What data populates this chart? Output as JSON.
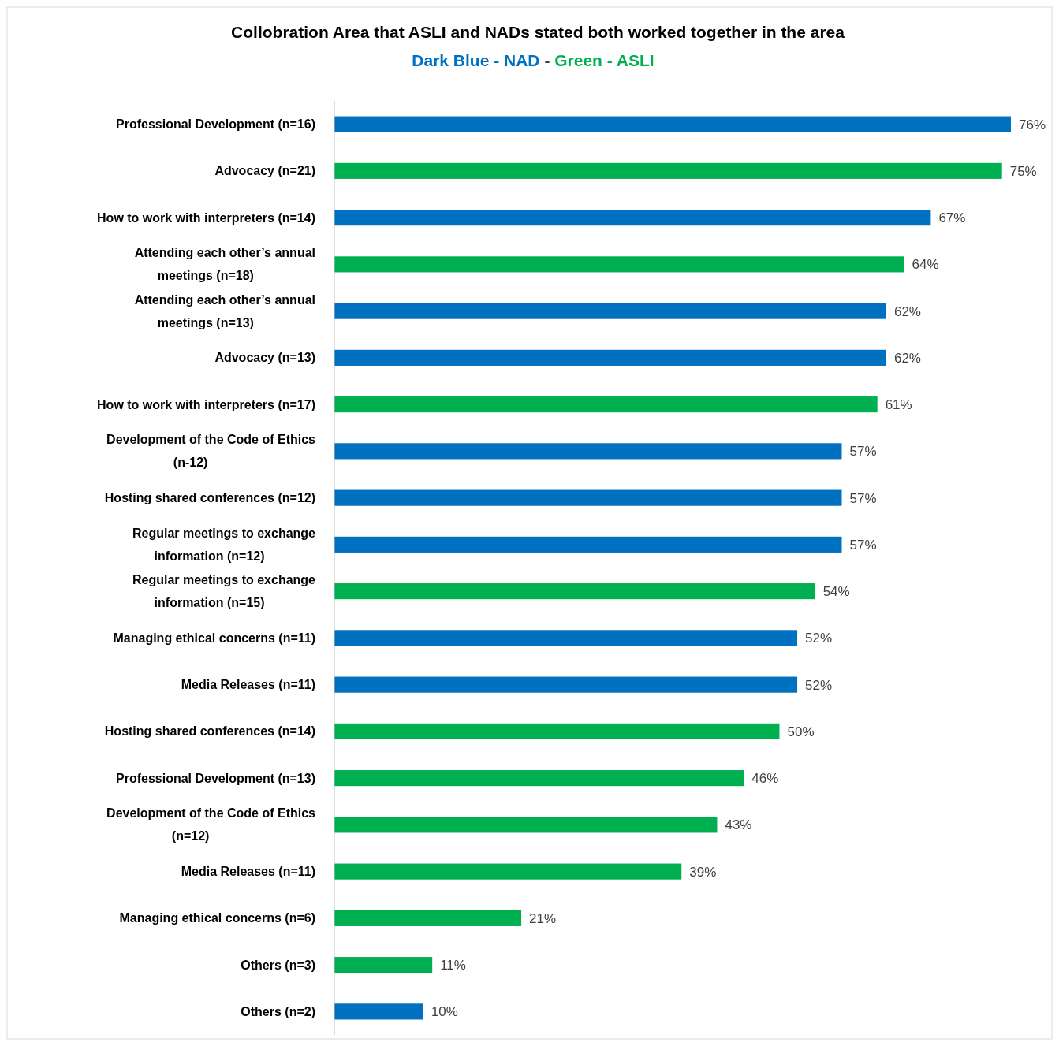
{
  "chart_data": {
    "type": "bar",
    "orientation": "horizontal",
    "title": "Collobration Area that ASLI and NADs stated both worked together in the area",
    "subtitle": "Dark Blue - NAD - Green - ASLI",
    "categories": [
      "Professional Development (n=16)",
      "Advocacy (n=21)",
      "How to work with interpreters (n=14)",
      "Attending each other’s annual meetings (n=18)",
      "Attending each other’s annual meetings (n=13)",
      "Advocacy (n=13)",
      "How to work with interpreters (n=17)",
      "Development of the Code of Ethics (n-12)",
      "Hosting shared conferences (n=12)",
      "Regular meetings to exchange information (n=12)",
      "Regular meetings to exchange information (n=15)",
      "Managing ethical concerns (n=11)",
      "Media Releases (n=11)",
      "Hosting shared conferences (n=14)",
      "Professional Development (n=13)",
      "Development of the Code of Ethics (n=12)",
      "Media Releases (n=11)",
      "Managing ethical concerns (n=6)",
      "Others (n=3)",
      "Others (n=2)"
    ],
    "values": [
      76,
      75,
      67,
      64,
      62,
      62,
      61,
      57,
      57,
      57,
      54,
      52,
      52,
      50,
      46,
      43,
      39,
      21,
      11,
      10
    ],
    "value_labels": [
      "76%",
      "75%",
      "67%",
      "64%",
      "62%",
      "62%",
      "61%",
      "57%",
      "57%",
      "57%",
      "54%",
      "52%",
      "52%",
      "50%",
      "46%",
      "43%",
      "39%",
      "21%",
      "11%",
      "10%"
    ],
    "colors": [
      "#0070c0",
      "#00b050",
      "#0070c0",
      "#00b050",
      "#0070c0",
      "#0070c0",
      "#00b050",
      "#0070c0",
      "#0070c0",
      "#0070c0",
      "#00b050",
      "#0070c0",
      "#0070c0",
      "#00b050",
      "#00b050",
      "#00b050",
      "#00b050",
      "#00b050",
      "#00b050",
      "#0070c0"
    ]
  }
}
